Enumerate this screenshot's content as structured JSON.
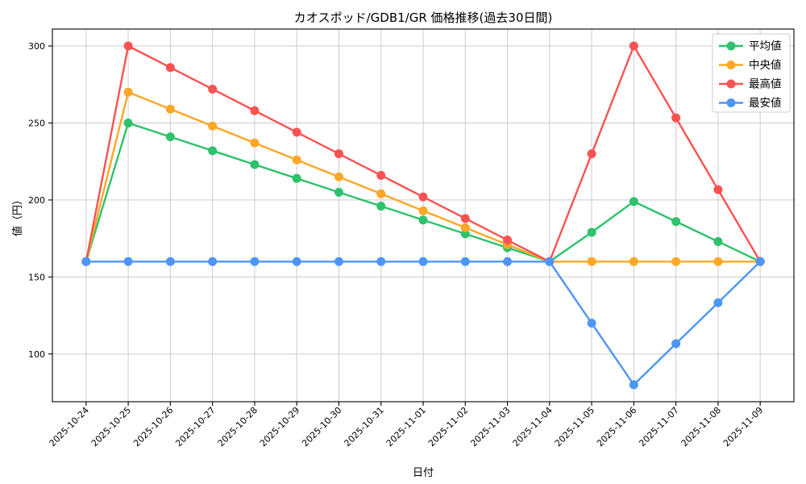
{
  "chart_data": {
    "type": "line",
    "title": "カオスポッド/GDB1/GR 価格推移(過去30日間)",
    "xlabel": "日付",
    "ylabel": "値（円）",
    "grid": true,
    "legend_position": "upper right",
    "xlim": [
      -0.8,
      16.8
    ],
    "ylim": [
      69,
      311
    ],
    "y_ticks": [
      100,
      150,
      200,
      250,
      300
    ],
    "categories": [
      "2025-10-24",
      "2025-10-25",
      "2025-10-26",
      "2025-10-27",
      "2025-10-28",
      "2025-10-29",
      "2025-10-30",
      "2025-10-31",
      "2025-11-01",
      "2025-11-02",
      "2025-11-03",
      "2025-11-04",
      "2025-11-05",
      "2025-11-06",
      "2025-11-07",
      "2025-11-08",
      "2025-11-09"
    ],
    "series": [
      {
        "key": "average",
        "name": "平均値",
        "color": "#2dc26b",
        "values": [
          160,
          250,
          241,
          232,
          223,
          214,
          205,
          196,
          187,
          178,
          169,
          160,
          179,
          199,
          186,
          173,
          160
        ]
      },
      {
        "key": "median",
        "name": "中央値",
        "color": "#ffa726",
        "values": [
          160,
          270,
          259,
          248,
          237,
          226,
          215,
          204,
          193,
          182,
          171,
          160,
          160,
          160,
          160,
          160,
          160
        ]
      },
      {
        "key": "max",
        "name": "最高値",
        "color": "#fa5252",
        "values": [
          160,
          300,
          286,
          272,
          258,
          244,
          230,
          216,
          202,
          188,
          174,
          160,
          230,
          300,
          253.3,
          206.7,
          160
        ]
      },
      {
        "key": "min",
        "name": "最安値",
        "color": "#4d96f8",
        "values": [
          160,
          160,
          160,
          160,
          160,
          160,
          160,
          160,
          160,
          160,
          160,
          160,
          120,
          80,
          106.7,
          133.3,
          160
        ]
      }
    ],
    "style": {
      "grid_color": "#cccccc",
      "spine_color": "#000000",
      "background": "#ffffff",
      "legend_border": "#cccccc",
      "line_width": 2.4,
      "marker_radius": 5.5
    }
  }
}
